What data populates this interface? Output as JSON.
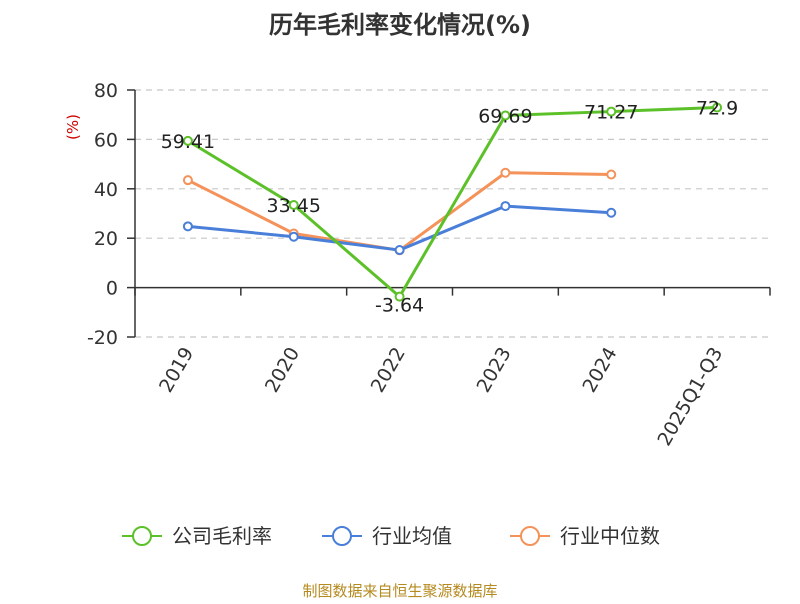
{
  "chart_data": {
    "type": "line",
    "title": "历年毛利率变化情况(%)",
    "ylabel": "(%)",
    "xlabel": "",
    "categories": [
      "2019",
      "2020",
      "2022",
      "2023",
      "2024",
      "2025Q1-Q3"
    ],
    "yticks": [
      80,
      60,
      40,
      20,
      0,
      -20
    ],
    "ylim": [
      -20,
      80
    ],
    "grid": true,
    "legend_position": "bottom",
    "series": [
      {
        "name": "公司毛利率",
        "color": "#5cc129",
        "values": [
          59.41,
          33.45,
          -3.64,
          69.69,
          71.27,
          72.9
        ],
        "labels": [
          "59.41",
          "33.45",
          "-3.64",
          "69.69",
          "71.27",
          "72.9"
        ]
      },
      {
        "name": "行业均值",
        "color": "#4a7fd9",
        "values": [
          24.8,
          20.6,
          15.2,
          33.0,
          30.3,
          null
        ]
      },
      {
        "name": "行业中位数",
        "color": "#f4925a",
        "values": [
          43.5,
          21.9,
          15.1,
          46.5,
          45.8,
          null
        ]
      }
    ],
    "source": "制图数据来自恒生聚源数据库"
  }
}
